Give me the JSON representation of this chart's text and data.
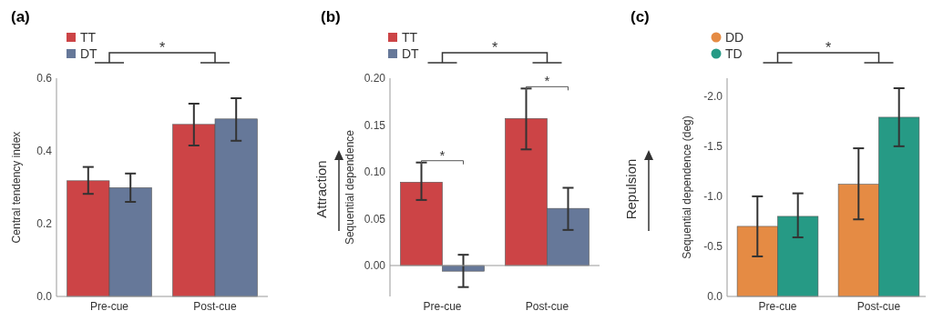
{
  "chart_data": [
    {
      "type": "bar",
      "title": "(a)",
      "ylabel": "Central tendency index",
      "categories": [
        "Pre-cue",
        "Post-cue"
      ],
      "series": [
        {
          "name": "TT",
          "color": "#cc4446",
          "values": [
            0.318,
            0.473
          ],
          "errors": [
            [
              0.282,
              0.356
            ],
            [
              0.415,
              0.53
            ]
          ]
        },
        {
          "name": "DT",
          "color": "#667899",
          "values": [
            0.299,
            0.488
          ],
          "errors": [
            [
              0.26,
              0.338
            ],
            [
              0.428,
              0.545
            ]
          ]
        }
      ],
      "ylim": [
        0,
        0.6
      ],
      "yticks": [
        {
          "value": 0,
          "label": "0.0"
        },
        {
          "value": 0.2,
          "label": "0.2"
        },
        {
          "value": 0.4,
          "label": "0.4"
        },
        {
          "value": 0.6,
          "label": "0.6"
        }
      ],
      "legend": "top left",
      "grid": false,
      "annotations": [
        "*"
      ]
    },
    {
      "type": "bar",
      "title": "(b)",
      "ylabel": "Sequential dependence",
      "categories": [
        "Pre-cue",
        "Post-cue"
      ],
      "series": [
        {
          "name": "TT",
          "color": "#cc4446",
          "values": [
            0.089,
            0.157
          ],
          "errors": [
            [
              0.07,
              0.11
            ],
            [
              0.124,
              0.189
            ]
          ]
        },
        {
          "name": "DT",
          "color": "#667899",
          "values": [
            -0.006,
            0.061
          ],
          "errors": [
            [
              -0.023,
              0.0115
            ],
            [
              0.038,
              0.083
            ]
          ]
        }
      ],
      "ylim": [
        -0.033,
        0.2
      ],
      "yticks": [
        {
          "value": 0,
          "label": "0.00"
        },
        {
          "value": 0.05,
          "label": "0.05"
        },
        {
          "value": 0.1,
          "label": "0.10"
        },
        {
          "value": 0.15,
          "label": "0.15"
        },
        {
          "value": 0.2,
          "label": "0.20"
        }
      ],
      "legend": "top left",
      "grid": false,
      "ref_lines": [
        {
          "axis": "y",
          "value": 0
        }
      ],
      "annotations": [
        "*",
        "Attraction",
        "*",
        "*"
      ]
    },
    {
      "type": "bar",
      "title": "(c)",
      "ylabel": "Sequential dependence (deg)",
      "categories": [
        "Pre-cue",
        "Post-cue"
      ],
      "series": [
        {
          "name": "DD",
          "color": "#e58b44",
          "values": [
            -0.7,
            -1.12
          ],
          "errors": [
            [
              -0.4,
              -1.0
            ],
            [
              -0.77,
              -1.48
            ]
          ]
        },
        {
          "name": "TD",
          "color": "#269a85",
          "values": [
            -0.8,
            -1.79
          ],
          "errors": [
            [
              -0.59,
              -1.03
            ],
            [
              -1.5,
              -2.08
            ]
          ]
        }
      ],
      "ylim": [
        0,
        -2.18
      ],
      "yticks": [
        {
          "value": 0,
          "label": "0.0"
        },
        {
          "value": -0.5,
          "label": "-0.5"
        },
        {
          "value": -1,
          "label": "-1.0"
        },
        {
          "value": -1.5,
          "label": "-1.5"
        },
        {
          "value": -2,
          "label": "-2.0"
        }
      ],
      "legend": "top left",
      "grid": false,
      "marker": "circle",
      "annotations": [
        "*",
        "Repulsion"
      ]
    }
  ]
}
